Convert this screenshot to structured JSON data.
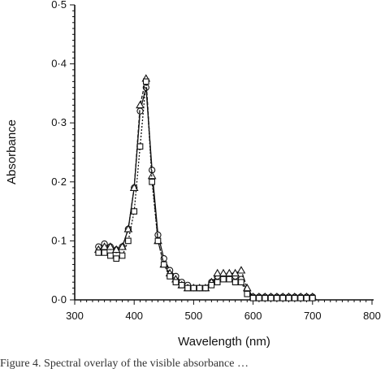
{
  "chart_data": {
    "type": "line",
    "xlabel": "Wavelength (nm)",
    "ylabel": "Absorbance",
    "xlim": [
      300,
      800
    ],
    "ylim": [
      0,
      0.5
    ],
    "x_ticks": [
      "300",
      "400",
      "500",
      "600",
      "700",
      "800"
    ],
    "y_ticks": [
      "0·0",
      "0·1",
      "0·2",
      "0·3",
      "0·4",
      "0·5"
    ],
    "grid": false,
    "legend": "none",
    "series": [
      {
        "marker": "circle",
        "color": "#111111",
        "x": [
          340,
          350,
          360,
          370,
          380,
          390,
          400,
          410,
          420,
          430,
          440,
          450,
          460,
          470,
          480,
          490,
          500,
          510,
          520,
          530,
          540,
          550,
          560,
          570,
          580,
          590,
          600,
          610,
          620,
          630,
          640,
          650,
          660,
          670,
          680,
          690,
          700
        ],
        "y": [
          0.09,
          0.095,
          0.09,
          0.085,
          0.09,
          0.12,
          0.19,
          0.32,
          0.36,
          0.22,
          0.11,
          0.07,
          0.05,
          0.04,
          0.03,
          0.025,
          0.02,
          0.02,
          0.02,
          0.03,
          0.04,
          0.04,
          0.04,
          0.04,
          0.035,
          0.015,
          0.005,
          0.005,
          0.005,
          0.005,
          0.005,
          0.005,
          0.005,
          0.005,
          0.005,
          0.005,
          0.005
        ]
      },
      {
        "marker": "triangle",
        "color": "#111111",
        "x": [
          340,
          350,
          360,
          370,
          380,
          390,
          400,
          410,
          420,
          430,
          440,
          450,
          460,
          470,
          480,
          490,
          500,
          510,
          520,
          530,
          540,
          550,
          560,
          570,
          580,
          590,
          600,
          610,
          620,
          630,
          640,
          650,
          660,
          670,
          680,
          690,
          700
        ],
        "y": [
          0.085,
          0.09,
          0.09,
          0.085,
          0.09,
          0.12,
          0.19,
          0.33,
          0.375,
          0.21,
          0.1,
          0.06,
          0.045,
          0.035,
          0.025,
          0.02,
          0.02,
          0.02,
          0.02,
          0.03,
          0.045,
          0.045,
          0.045,
          0.045,
          0.05,
          0.02,
          0.005,
          0.005,
          0.005,
          0.005,
          0.005,
          0.005,
          0.005,
          0.005,
          0.005,
          0.005,
          0.005
        ]
      },
      {
        "marker": "square",
        "color": "#111111",
        "x": [
          340,
          350,
          360,
          370,
          380,
          390,
          400,
          410,
          420,
          430,
          440,
          450,
          460,
          470,
          480,
          490,
          500,
          510,
          520,
          530,
          540,
          550,
          560,
          570,
          580,
          590,
          600,
          610,
          620,
          630,
          640,
          650,
          660,
          670,
          680,
          690,
          700
        ],
        "y": [
          0.08,
          0.08,
          0.075,
          0.07,
          0.075,
          0.1,
          0.15,
          0.26,
          0.37,
          0.2,
          0.1,
          0.06,
          0.04,
          0.03,
          0.025,
          0.02,
          0.02,
          0.02,
          0.02,
          0.025,
          0.03,
          0.035,
          0.035,
          0.03,
          0.03,
          0.01,
          0.003,
          0.003,
          0.003,
          0.003,
          0.003,
          0.003,
          0.003,
          0.003,
          0.003,
          0.003,
          0.003
        ]
      }
    ]
  },
  "caption": "Figure 4. Spectral overlay of the visible absorbance …"
}
